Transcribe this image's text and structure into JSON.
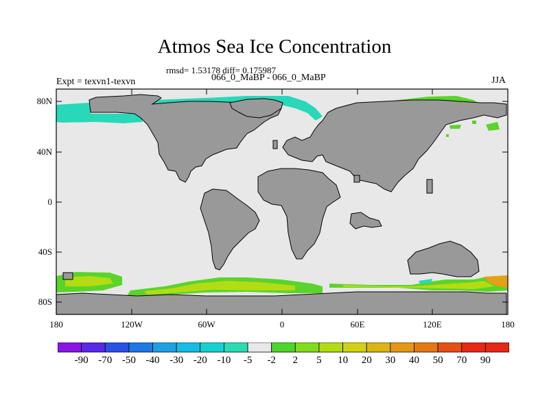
{
  "title": "Atmos Sea Ice Concentration",
  "stats_line": "rmsd= 1.53178 diff= 0.175987",
  "subtitle": "066_0_MaBP - 066_0_MaBP",
  "left_label": "Expt = texvn1-texvn",
  "right_label": "JJA",
  "lat_ticks": [
    "80N",
    "40N",
    "0",
    "40S",
    "80S"
  ],
  "lon_ticks": [
    "180",
    "120W",
    "60W",
    "0",
    "60E",
    "120E",
    "180"
  ],
  "colorbar": {
    "labels": [
      "-90",
      "-70",
      "-50",
      "-40",
      "-30",
      "-20",
      "-10",
      "-5",
      "-2",
      "2",
      "5",
      "10",
      "20",
      "30",
      "40",
      "50",
      "70",
      "90"
    ],
    "colors": [
      "#8a14e6",
      "#5a28e6",
      "#2a50e6",
      "#1e78e6",
      "#1ea0e6",
      "#14bce6",
      "#14d2d2",
      "#2adcb4",
      "#e8e8e8",
      "#4ad62a",
      "#82dc1e",
      "#b4dc14",
      "#d2d214",
      "#dcb414",
      "#e69614",
      "#e67814",
      "#e65014",
      "#e62814"
    ]
  },
  "colors": {
    "land": "#999999",
    "ocean": "#e8e8e8",
    "ice_loss": "#28d8b8",
    "ice_gain_low": "#5ad42a",
    "ice_gain_mid": "#b4dc14",
    "ice_gain_high": "#e6a014"
  }
}
